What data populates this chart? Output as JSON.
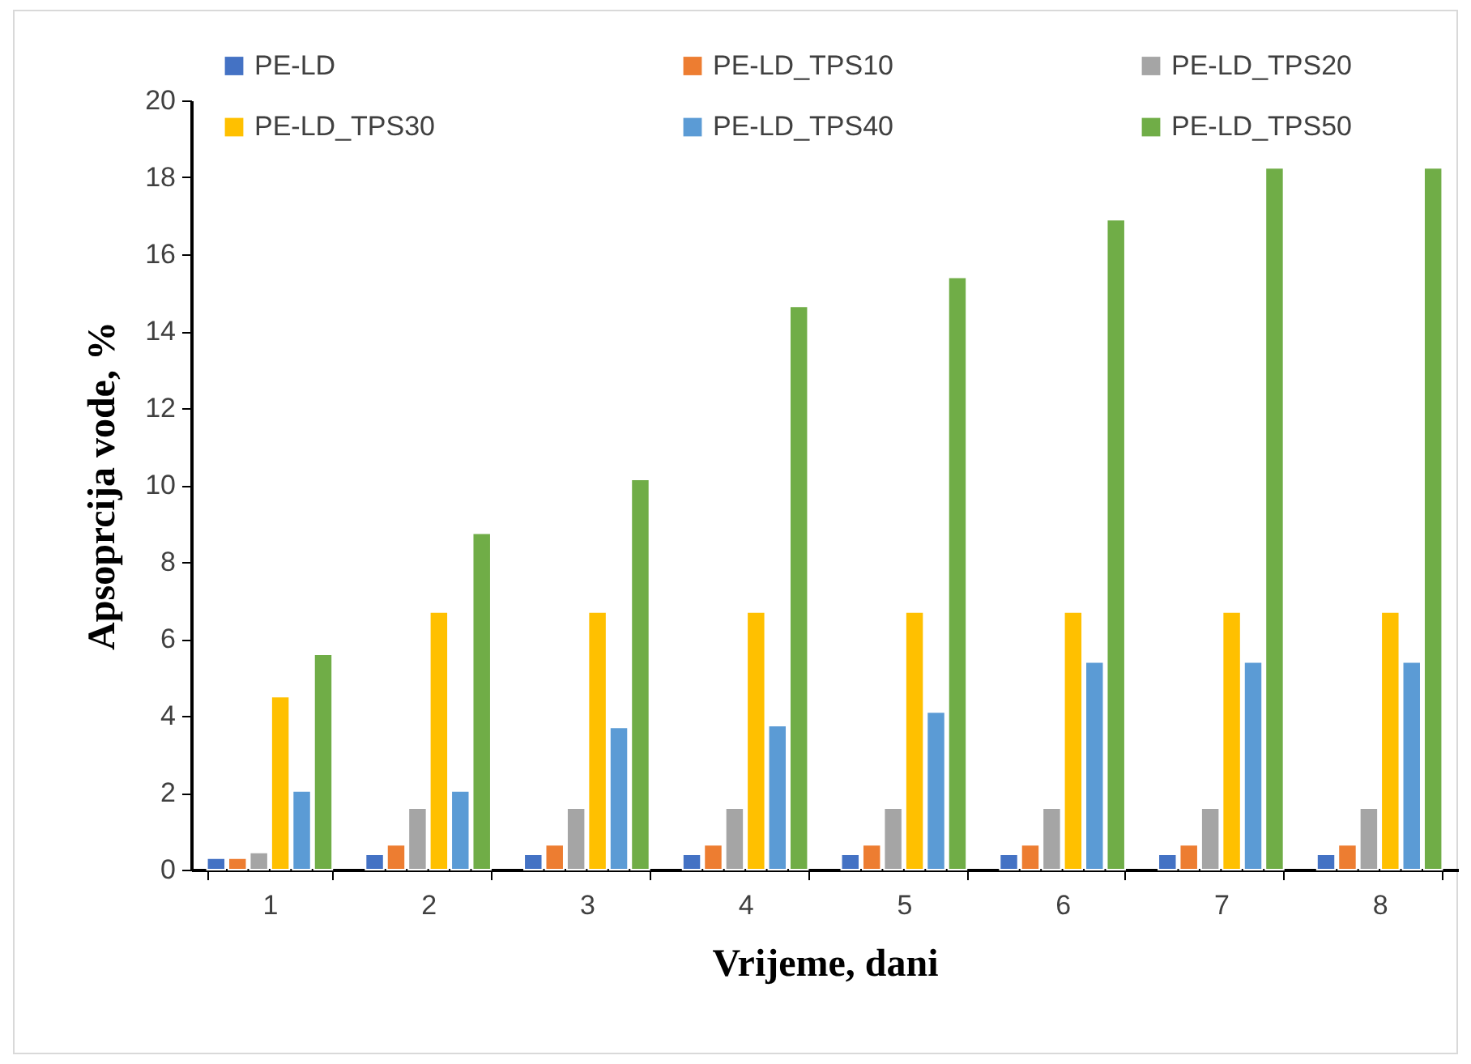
{
  "chart_data": {
    "type": "bar",
    "xlabel": "Vrijeme, dani",
    "ylabel": "Apsoprcija vode, %",
    "categories": [
      "1",
      "2",
      "3",
      "4",
      "5",
      "6",
      "7",
      "8"
    ],
    "ylim": [
      0,
      20
    ],
    "yticks": [
      0,
      2,
      4,
      6,
      8,
      10,
      12,
      14,
      16,
      18,
      20
    ],
    "grid": false,
    "legend": "top",
    "series": [
      {
        "name": "PE-LD",
        "color": "#4472c4",
        "values": [
          0.3,
          0.4,
          0.4,
          0.4,
          0.4,
          0.4,
          0.4,
          0.4
        ]
      },
      {
        "name": "PE-LD_TPS10",
        "color": "#ed7d31",
        "values": [
          0.3,
          0.65,
          0.65,
          0.65,
          0.65,
          0.65,
          0.65,
          0.65
        ]
      },
      {
        "name": "PE-LD_TPS20",
        "color": "#a5a5a5",
        "values": [
          0.45,
          1.6,
          1.6,
          1.6,
          1.6,
          1.6,
          1.6,
          1.6
        ]
      },
      {
        "name": "PE-LD_TPS30",
        "color": "#ffc000",
        "values": [
          4.5,
          6.7,
          6.7,
          6.7,
          6.7,
          6.7,
          6.7,
          6.7
        ]
      },
      {
        "name": "PE-LD_TPS40",
        "color": "#5b9bd5",
        "values": [
          2.05,
          2.05,
          3.7,
          3.75,
          4.1,
          5.4,
          5.4,
          5.4
        ]
      },
      {
        "name": "PE-LD_TPS50",
        "color": "#70ad47",
        "values": [
          5.6,
          8.75,
          10.15,
          14.65,
          15.4,
          16.9,
          18.25,
          18.25
        ]
      }
    ]
  }
}
